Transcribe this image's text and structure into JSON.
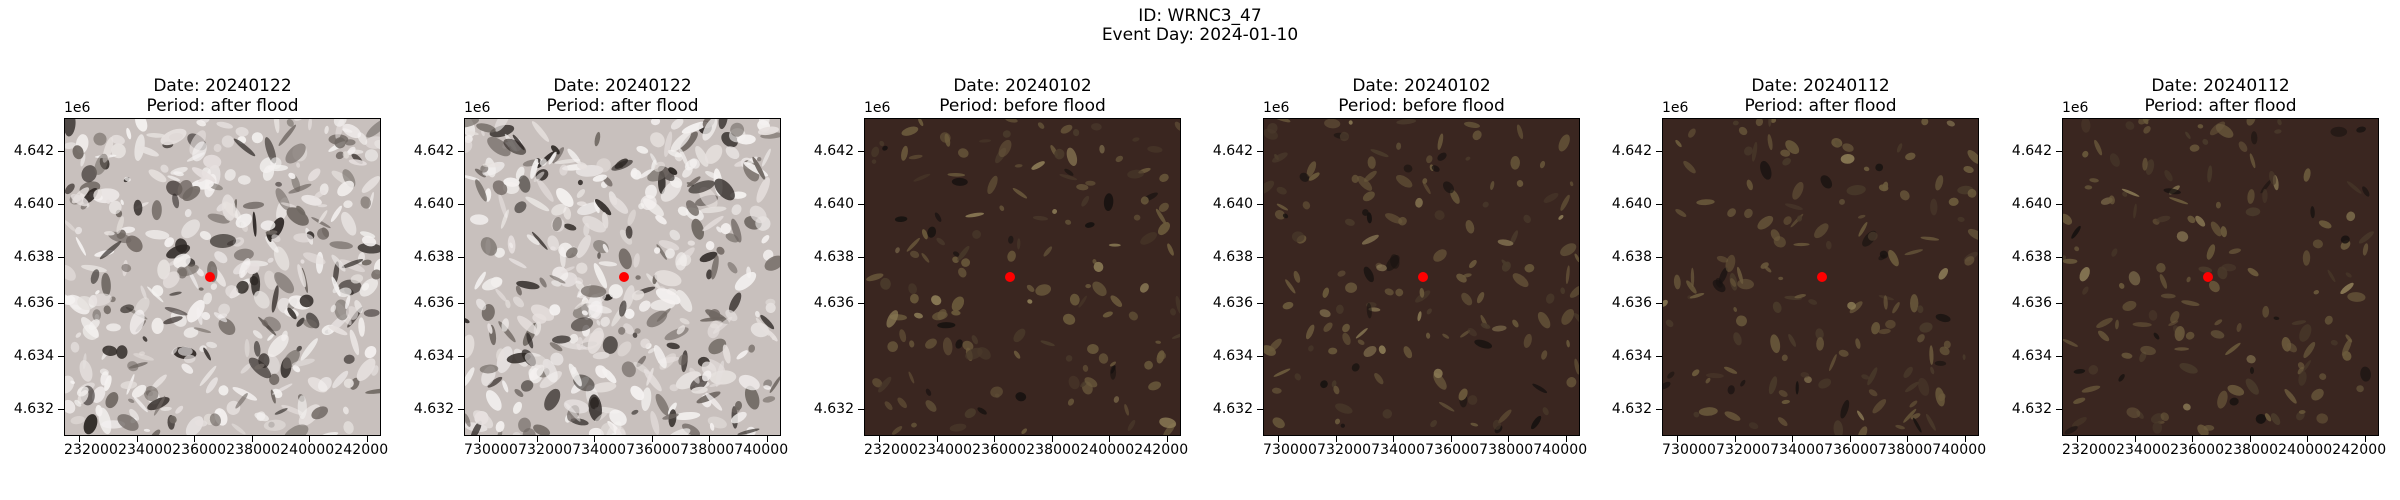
{
  "figure": {
    "id_label": "ID: WRNC3_47",
    "event_label": "Event Day: 2024-01-10"
  },
  "colors": {
    "marker": "#ff0000",
    "snow_bg": "#c8c0bd",
    "dark_bg": "#3a2620"
  },
  "panels": [
    {
      "date_label": "Date: 20240122",
      "period_label": "Period: after flood",
      "scene": "snow",
      "y_offset": "1e6",
      "y_ticks": [
        "4.642",
        "4.640",
        "4.638",
        "4.636",
        "4.634",
        "4.632"
      ],
      "x_tick_text": "232000234000236000238000240000242000",
      "marker_position": {
        "x": 236700,
        "y": 4637200
      }
    },
    {
      "date_label": "Date: 20240122",
      "period_label": "Period: after flood",
      "scene": "snow",
      "y_offset": "1e6",
      "y_ticks": [
        "4.642",
        "4.640",
        "4.638",
        "4.636",
        "4.634",
        "4.632"
      ],
      "x_tick_text": "730000732000734000736000738000740000",
      "marker_position": {
        "x": 735200,
        "y": 4637200
      }
    },
    {
      "date_label": "Date: 20240102",
      "period_label": "Period: before flood",
      "scene": "dark",
      "y_offset": "1e6",
      "y_ticks": [
        "4.642",
        "4.640",
        "4.638",
        "4.636",
        "4.632"
      ],
      "x_tick_text": "232000234000236000238000240000242000",
      "marker_position": {
        "x": 236700,
        "y": 4637200
      }
    },
    {
      "date_label": "Date: 20240102",
      "period_label": "Period: before flood",
      "scene": "dark",
      "y_offset": "1e6",
      "y_ticks": [
        "4.642",
        "4.640",
        "4.638",
        "4.636",
        "4.634",
        "4.632"
      ],
      "x_tick_text": "730000732000734000736000738000740000",
      "marker_position": {
        "x": 735200,
        "y": 4637200
      }
    },
    {
      "date_label": "Date: 20240112",
      "period_label": "Period: after flood",
      "scene": "dark",
      "y_offset": "1e6",
      "y_ticks": [
        "4.642",
        "4.640",
        "4.638",
        "4.636",
        "4.634",
        "4.632"
      ],
      "x_tick_text": "730000732000734000736000738000740000",
      "marker_position": {
        "x": 735200,
        "y": 4637200
      }
    },
    {
      "date_label": "Date: 20240112",
      "period_label": "Period: after flood",
      "scene": "dark",
      "y_offset": "1e6",
      "y_ticks": [
        "4.642",
        "4.640",
        "4.638",
        "4.636",
        "4.634",
        "4.632"
      ],
      "x_tick_text": "232000234000236000238000240000242000",
      "marker_position": {
        "x": 236700,
        "y": 4637200
      }
    }
  ]
}
